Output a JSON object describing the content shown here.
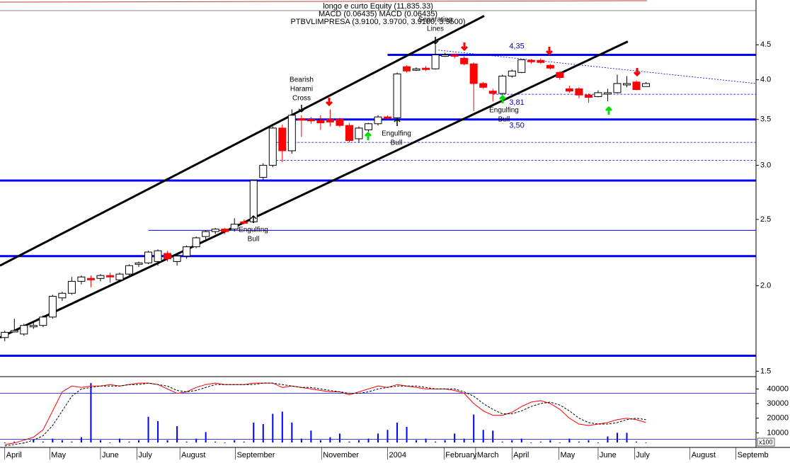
{
  "chart_data": {
    "type": "candlestick",
    "header": [
      "longo e curto Equity (11,835.33)",
      "MACD (0.06435) MACD (0.06435)",
      "PTBVLIMPRESA (3.9100, 3.9700, 3.9100, 3.9500)"
    ],
    "log_scale": true,
    "up_color": "#ffffff",
    "down_color": "#ff0000",
    "candles": [
      [
        1.68,
        1.72,
        1.66,
        1.71
      ],
      [
        1.72,
        1.79,
        1.71,
        1.72
      ],
      [
        1.7,
        1.76,
        1.69,
        1.75
      ],
      [
        1.75,
        1.77,
        1.73,
        1.75
      ],
      [
        1.75,
        1.81,
        1.74,
        1.8
      ],
      [
        1.8,
        1.94,
        1.79,
        1.93
      ],
      [
        1.92,
        1.96,
        1.9,
        1.95
      ],
      [
        1.95,
        2.06,
        1.94,
        2.03
      ],
      [
        2.03,
        2.07,
        2.01,
        2.06
      ],
      [
        2.05,
        2.07,
        1.99,
        2.04
      ],
      [
        2.05,
        2.08,
        2.03,
        2.07
      ],
      [
        2.07,
        2.09,
        2.02,
        2.06
      ],
      [
        2.04,
        2.09,
        2.03,
        2.08
      ],
      [
        2.08,
        2.15,
        2.07,
        2.14
      ],
      [
        2.15,
        2.17,
        2.13,
        2.16
      ],
      [
        2.16,
        2.25,
        2.15,
        2.24
      ],
      [
        2.17,
        2.26,
        2.14,
        2.25
      ],
      [
        2.23,
        2.25,
        2.17,
        2.19
      ],
      [
        2.17,
        2.22,
        2.14,
        2.21
      ],
      [
        2.21,
        2.29,
        2.19,
        2.28
      ],
      [
        2.28,
        2.36,
        2.27,
        2.35
      ],
      [
        2.36,
        2.41,
        2.33,
        2.4
      ],
      [
        2.4,
        2.43,
        2.38,
        2.42
      ],
      [
        2.42,
        2.43,
        2.38,
        2.4
      ],
      [
        2.42,
        2.51,
        2.4,
        2.46
      ],
      [
        2.48,
        2.5,
        2.46,
        2.47
      ],
      [
        2.48,
        2.86,
        2.47,
        2.85
      ],
      [
        2.88,
        3.02,
        2.86,
        3.0
      ],
      [
        3.0,
        3.42,
        2.98,
        3.4
      ],
      [
        3.4,
        3.44,
        3.03,
        3.15
      ],
      [
        3.15,
        3.62,
        3.12,
        3.55
      ],
      [
        3.51,
        3.55,
        3.3,
        3.5
      ],
      [
        3.5,
        3.53,
        3.45,
        3.49
      ],
      [
        3.49,
        3.55,
        3.38,
        3.46
      ],
      [
        3.5,
        3.62,
        3.42,
        3.47
      ],
      [
        3.5,
        3.52,
        3.41,
        3.43
      ],
      [
        3.43,
        3.46,
        3.24,
        3.26
      ],
      [
        3.28,
        3.42,
        3.24,
        3.4
      ],
      [
        3.38,
        3.46,
        3.36,
        3.45
      ],
      [
        3.45,
        3.55,
        3.43,
        3.53
      ],
      [
        3.53,
        3.55,
        3.5,
        3.52
      ],
      [
        3.52,
        4.1,
        3.5,
        4.08
      ],
      [
        4.18,
        4.2,
        4.1,
        4.12
      ],
      [
        4.15,
        4.17,
        4.12,
        4.15
      ],
      [
        4.16,
        4.19,
        4.12,
        4.15
      ],
      [
        4.15,
        4.5,
        4.14,
        4.35
      ],
      [
        4.35,
        4.38,
        4.32,
        4.35
      ],
      [
        4.35,
        4.37,
        4.3,
        4.33
      ],
      [
        4.3,
        4.33,
        4.2,
        4.22
      ],
      [
        4.22,
        4.24,
        3.6,
        3.95
      ],
      [
        3.95,
        3.97,
        3.88,
        3.9
      ],
      [
        3.85,
        3.88,
        3.72,
        3.82
      ],
      [
        3.82,
        4.07,
        3.8,
        4.05
      ],
      [
        4.05,
        4.14,
        4.03,
        4.12
      ],
      [
        4.1,
        4.29,
        4.09,
        4.28
      ],
      [
        4.27,
        4.29,
        4.22,
        4.25
      ],
      [
        4.27,
        4.3,
        4.22,
        4.24
      ],
      [
        4.2,
        4.22,
        4.14,
        4.16
      ],
      [
        4.1,
        4.12,
        4.0,
        4.03
      ],
      [
        3.88,
        3.92,
        3.83,
        3.85
      ],
      [
        3.88,
        3.9,
        3.76,
        3.8
      ],
      [
        3.8,
        3.82,
        3.7,
        3.77
      ],
      [
        3.78,
        3.86,
        3.77,
        3.83
      ],
      [
        3.83,
        3.88,
        3.72,
        3.83
      ],
      [
        3.83,
        4.07,
        3.82,
        3.95
      ],
      [
        3.95,
        4.05,
        3.9,
        3.95
      ],
      [
        3.97,
        3.99,
        3.86,
        3.87
      ],
      [
        3.91,
        3.97,
        3.91,
        3.95
      ]
    ],
    "xlim": [
      -0.5,
      78.5
    ],
    "x_labels": [
      {
        "value": 0,
        "label": "April"
      },
      {
        "value": 4.7,
        "label": "May"
      },
      {
        "value": 10,
        "label": "June"
      },
      {
        "value": 13.8,
        "label": "July"
      },
      {
        "value": 18.3,
        "label": "August"
      },
      {
        "value": 24.1,
        "label": "September"
      },
      {
        "value": 33.1,
        "label": "November"
      },
      {
        "value": 40,
        "label": "2004"
      },
      {
        "value": 45.9,
        "label": "February"
      },
      {
        "value": 49.2,
        "label": "March"
      },
      {
        "value": 53,
        "label": "April"
      },
      {
        "value": 57.9,
        "label": "May"
      },
      {
        "value": 62,
        "label": "June"
      },
      {
        "value": 65.8,
        "label": "July"
      },
      {
        "value": 71.6,
        "label": "August"
      },
      {
        "value": 76.4,
        "label": "Septemb"
      }
    ],
    "ylim": [
      1.48,
      5.17
    ],
    "yticks": [
      1.5,
      {
        "value": 2,
        "label": "2.0"
      },
      2.5,
      {
        "value": 3,
        "label": "3.0"
      },
      3.5,
      {
        "value": 4,
        "label": "4.0"
      },
      4.5
    ],
    "levels": [
      {
        "value": 4.35,
        "from": 40,
        "style": "thick",
        "label": "4,35"
      },
      {
        "value": 3.5,
        "from": 30,
        "style": "thick",
        "label": "3,50"
      },
      {
        "value": 3.81,
        "from": 51,
        "style": "dashed",
        "label": "3,81"
      },
      {
        "value": 3.24,
        "from": 28,
        "style": "dashed"
      },
      {
        "value": 3.05,
        "from": 28,
        "style": "dashed"
      },
      {
        "value": 2.85,
        "from": -0.5,
        "style": "thick"
      },
      {
        "value": 2.41,
        "from": 15,
        "style": "thin"
      },
      {
        "value": 2.21,
        "from": -0.5,
        "style": "thick"
      },
      {
        "value": 1.58,
        "from": -0.5,
        "style": "thick"
      }
    ],
    "trendlines": [
      {
        "x": [
          -0.5,
          50.1
        ],
        "y": [
          2.14,
          4.96
        ],
        "style": "solid"
      },
      {
        "x": [
          -0.5,
          65.1
        ],
        "y": [
          1.68,
          4.55
        ],
        "style": "solid"
      },
      {
        "x": [
          45.3,
          78.5
        ],
        "y": [
          4.42,
          3.95
        ],
        "style": "dotted"
      }
    ],
    "annotations": [
      [
        "Bearish",
        "Harami",
        "Cross"
      ],
      [
        "Engulfing",
        "Bull"
      ],
      [
        "Engulfing",
        "Bull"
      ],
      [
        "Engulfing",
        "Bull"
      ],
      [
        "Separating",
        "Lines"
      ]
    ],
    "volume": {
      "ylim": [
        0,
        46000
      ],
      "yticks": [
        10000,
        20000,
        30000,
        40000
      ],
      "unit": "x100",
      "color": "#0000ff",
      "values": [
        3000,
        4000,
        3000,
        5000,
        4000,
        6000,
        5000,
        4000,
        7000,
        44000,
        5000,
        3000,
        6000,
        4000,
        5000,
        21000,
        18000,
        5000,
        14500,
        4000,
        6000,
        10500,
        4000,
        3000,
        5000,
        4000,
        17000,
        16000,
        23000,
        24500,
        17000,
        6000,
        11500,
        5000,
        7000,
        9500,
        4000,
        5000,
        6000,
        9500,
        12000,
        17000,
        14000,
        5000,
        6000,
        4000,
        5000,
        9500,
        6000,
        22500,
        12000,
        11500,
        4000,
        5000,
        6000,
        3000,
        4000,
        5000,
        3000,
        6000,
        4000,
        5000,
        3000,
        7500,
        10000,
        10000,
        4000,
        3000
      ]
    },
    "stochastic": [
      {
        "color": "#ff0000",
        "style": "solid",
        "values": [
          2000,
          3000,
          5000,
          7000,
          12000,
          25000,
          38000,
          42000,
          41000,
          42000,
          42000,
          43000,
          42000,
          43000,
          44000,
          44000,
          43000,
          40000,
          37000,
          38000,
          41000,
          43000,
          44000,
          43000,
          43000,
          43000,
          44000,
          44000,
          44000,
          41000,
          42000,
          41000,
          40000,
          39000,
          38000,
          38000,
          36000,
          38000,
          40000,
          42000,
          41000,
          43000,
          42000,
          41000,
          40000,
          40000,
          40000,
          39000,
          37000,
          30000,
          25000,
          22000,
          22000,
          24000,
          28000,
          31000,
          32000,
          30000,
          26000,
          20000,
          16000,
          15000,
          16000,
          17000,
          19000,
          20000,
          19000,
          17000
        ]
      },
      {
        "color": "#000000",
        "style": "dashed",
        "values": [
          1000,
          2000,
          3000,
          5000,
          8000,
          15000,
          25000,
          35000,
          40000,
          41000,
          42000,
          42000,
          42000,
          43000,
          43000,
          44000,
          43000,
          42000,
          39000,
          38000,
          39000,
          41000,
          43000,
          43000,
          43000,
          43000,
          43000,
          44000,
          44000,
          43000,
          42000,
          41000,
          41000,
          40000,
          39000,
          38000,
          37000,
          37000,
          38000,
          40000,
          41000,
          42000,
          42000,
          42000,
          41000,
          40000,
          40000,
          40000,
          38000,
          35000,
          30000,
          26000,
          23000,
          23000,
          25000,
          28000,
          30000,
          31000,
          29000,
          25000,
          20000,
          17000,
          16000,
          16000,
          17000,
          19000,
          20000,
          19000
        ]
      }
    ]
  }
}
